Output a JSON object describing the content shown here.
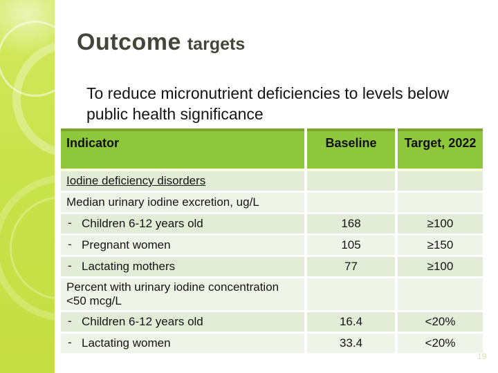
{
  "slide": {
    "title_main": "Outcome",
    "title_sub": "targets",
    "subtitle": "To reduce micronutrient deficiencies to levels below public health significance",
    "page_number": "19"
  },
  "colors": {
    "sidebar_green": "#c9e24b",
    "header_green": "#8ec63c",
    "header_top_border": "#7aa62f",
    "row_band_dark": "#e3ecd7",
    "row_band_light": "#eff4e8",
    "title_color": "#45453a"
  },
  "table": {
    "dash_glyph": "-",
    "columns": [
      {
        "label": "Indicator"
      },
      {
        "label": "Baseline"
      },
      {
        "label": "Target, 2022"
      }
    ],
    "rows": [
      {
        "indicator": "Iodine deficiency disorders",
        "baseline": "",
        "target": "",
        "band": "a",
        "underline": true,
        "dash": false
      },
      {
        "indicator": "Median urinary iodine excretion, ug/L",
        "baseline": "",
        "target": "",
        "band": "b",
        "underline": false,
        "dash": false
      },
      {
        "indicator": "Children 6-12 years old",
        "baseline": "168",
        "target": "≥100",
        "band": "a",
        "underline": false,
        "dash": true
      },
      {
        "indicator": "Pregnant women",
        "baseline": "105",
        "target": "≥150",
        "band": "b",
        "underline": false,
        "dash": true
      },
      {
        "indicator": "Lactating mothers",
        "baseline": "77",
        "target": "≥100",
        "band": "a",
        "underline": false,
        "dash": true
      },
      {
        "indicator": "Percent with urinary iodine concentration <50 mcg/L",
        "baseline": "",
        "target": "",
        "band": "b",
        "underline": false,
        "dash": false
      },
      {
        "indicator": "Children 6-12 years old",
        "baseline": "16.4",
        "target": "<20%",
        "band": "a",
        "underline": false,
        "dash": true
      },
      {
        "indicator": "Lactating women",
        "baseline": "33.4",
        "target": "<20%",
        "band": "b",
        "underline": false,
        "dash": true
      }
    ]
  }
}
